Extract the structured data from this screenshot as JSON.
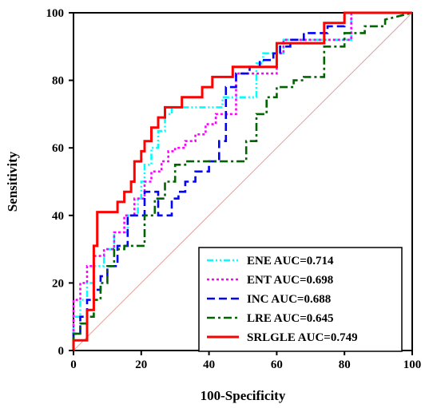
{
  "chart_data": {
    "type": "line",
    "title": "",
    "xlabel": "100-Specificity",
    "ylabel": "Sensitivity",
    "xlim": [
      0,
      100
    ],
    "ylim": [
      0,
      100
    ],
    "xticks": [
      0,
      20,
      40,
      60,
      80,
      100
    ],
    "yticks": [
      0,
      20,
      40,
      60,
      80,
      100
    ],
    "xtick_labels": [
      "0",
      "20",
      "40",
      "60",
      "80",
      "100"
    ],
    "ytick_labels": [
      "0",
      "20",
      "40",
      "60",
      "80",
      "100"
    ],
    "grid": false,
    "legend_position": "bottom-right",
    "reference_line": {
      "x": [
        0,
        100
      ],
      "y": [
        0,
        100
      ],
      "color": "#e0a0a0"
    },
    "series": [
      {
        "name": "ENE AUC=0.714",
        "color": "#00ffff",
        "dash": "dash-dot-dot",
        "x": [
          0,
          0,
          2,
          2,
          4,
          4,
          6,
          6,
          9,
          9,
          12,
          12,
          16,
          16,
          19,
          19,
          20,
          20,
          21,
          21,
          23,
          23,
          25,
          25,
          27,
          27,
          29,
          29,
          31,
          31,
          44,
          44,
          54,
          54,
          56,
          56,
          62,
          62,
          82,
          82,
          100
        ],
        "y": [
          0,
          10,
          10,
          15,
          15,
          20,
          20,
          25,
          25,
          30,
          30,
          35,
          35,
          40,
          40,
          45,
          45,
          50,
          50,
          55,
          55,
          60,
          60,
          65,
          65,
          70,
          70,
          72,
          72,
          72,
          72,
          75,
          75,
          85,
          85,
          88,
          88,
          92,
          92,
          100,
          100
        ]
      },
      {
        "name": "ENT AUC=0.698",
        "color": "#ff00ff",
        "dash": "dot",
        "x": [
          0,
          0,
          2,
          2,
          4,
          4,
          6,
          6,
          9,
          9,
          12,
          12,
          15,
          15,
          18,
          18,
          21,
          21,
          23,
          23,
          26,
          26,
          28,
          28,
          30,
          30,
          33,
          33,
          36,
          36,
          39,
          39,
          42,
          42,
          48,
          48,
          60,
          60,
          62,
          62,
          82,
          82,
          100
        ],
        "y": [
          0,
          15,
          15,
          20,
          20,
          25,
          25,
          28,
          28,
          30,
          30,
          35,
          35,
          40,
          40,
          45,
          45,
          50,
          50,
          53,
          53,
          56,
          56,
          59,
          59,
          60,
          60,
          62,
          62,
          64,
          64,
          67,
          67,
          70,
          70,
          82,
          82,
          88,
          88,
          92,
          92,
          100,
          100
        ]
      },
      {
        "name": "INC AUC=0.688",
        "color": "#0000ff",
        "dash": "dash",
        "x": [
          0,
          0,
          2,
          2,
          4,
          4,
          6,
          6,
          8,
          8,
          10,
          10,
          13,
          13,
          16,
          16,
          19,
          19,
          21,
          21,
          25,
          25,
          29,
          29,
          31,
          31,
          33,
          33,
          36,
          36,
          40,
          40,
          43,
          43,
          45,
          45,
          48,
          48,
          52,
          52,
          55,
          55,
          59,
          59,
          61,
          61,
          64,
          64,
          68,
          68,
          75,
          75,
          80,
          80,
          100
        ],
        "y": [
          0,
          5,
          5,
          10,
          10,
          15,
          15,
          18,
          18,
          22,
          22,
          25,
          25,
          31,
          31,
          40,
          40,
          40,
          40,
          47,
          47,
          40,
          40,
          45,
          45,
          47,
          47,
          50,
          50,
          53,
          53,
          56,
          56,
          62,
          62,
          78,
          78,
          82,
          82,
          84,
          84,
          86,
          86,
          88,
          88,
          90,
          90,
          92,
          92,
          94,
          94,
          96,
          96,
          100,
          100
        ]
      },
      {
        "name": "LRE AUC=0.645",
        "color": "#006400",
        "dash": "dash-dot",
        "x": [
          0,
          0,
          2,
          2,
          4,
          4,
          6,
          6,
          8,
          8,
          10,
          10,
          12,
          12,
          15,
          15,
          18,
          18,
          21,
          21,
          24,
          24,
          27,
          27,
          30,
          30,
          33,
          33,
          36,
          36,
          40,
          40,
          43,
          43,
          46,
          46,
          48,
          48,
          51,
          51,
          54,
          54,
          57,
          57,
          60,
          60,
          65,
          65,
          68,
          68,
          74,
          74,
          80,
          80,
          86,
          86,
          92,
          92,
          100
        ],
        "y": [
          0,
          5,
          5,
          8,
          8,
          10,
          10,
          15,
          15,
          20,
          20,
          25,
          25,
          30,
          30,
          31,
          31,
          31,
          31,
          40,
          40,
          45,
          45,
          50,
          50,
          55,
          55,
          56,
          56,
          56,
          56,
          56,
          56,
          56,
          56,
          56,
          56,
          56,
          56,
          62,
          62,
          70,
          70,
          75,
          75,
          78,
          78,
          80,
          80,
          81,
          81,
          90,
          90,
          94,
          94,
          96,
          96,
          98,
          100
        ]
      },
      {
        "name": "SRLGLE AUC=0.749",
        "color": "#ff0000",
        "dash": "solid",
        "x": [
          0,
          0,
          2,
          2,
          4,
          4,
          6,
          6,
          7,
          7,
          13,
          13,
          15,
          15,
          17,
          17,
          18,
          18,
          20,
          20,
          21,
          21,
          23,
          23,
          25,
          25,
          27,
          27,
          29,
          29,
          32,
          32,
          35,
          35,
          38,
          38,
          41,
          41,
          44,
          44,
          47,
          47,
          58,
          58,
          60,
          60,
          74,
          74,
          80,
          80,
          100
        ],
        "y": [
          0,
          3,
          3,
          3,
          3,
          12,
          12,
          31,
          31,
          41,
          41,
          44,
          44,
          47,
          47,
          50,
          50,
          56,
          56,
          59,
          59,
          62,
          62,
          66,
          66,
          69,
          69,
          72,
          72,
          72,
          72,
          75,
          75,
          75,
          75,
          78,
          78,
          81,
          81,
          81,
          81,
          84,
          84,
          84,
          84,
          91,
          91,
          97,
          97,
          100,
          100
        ]
      }
    ]
  }
}
